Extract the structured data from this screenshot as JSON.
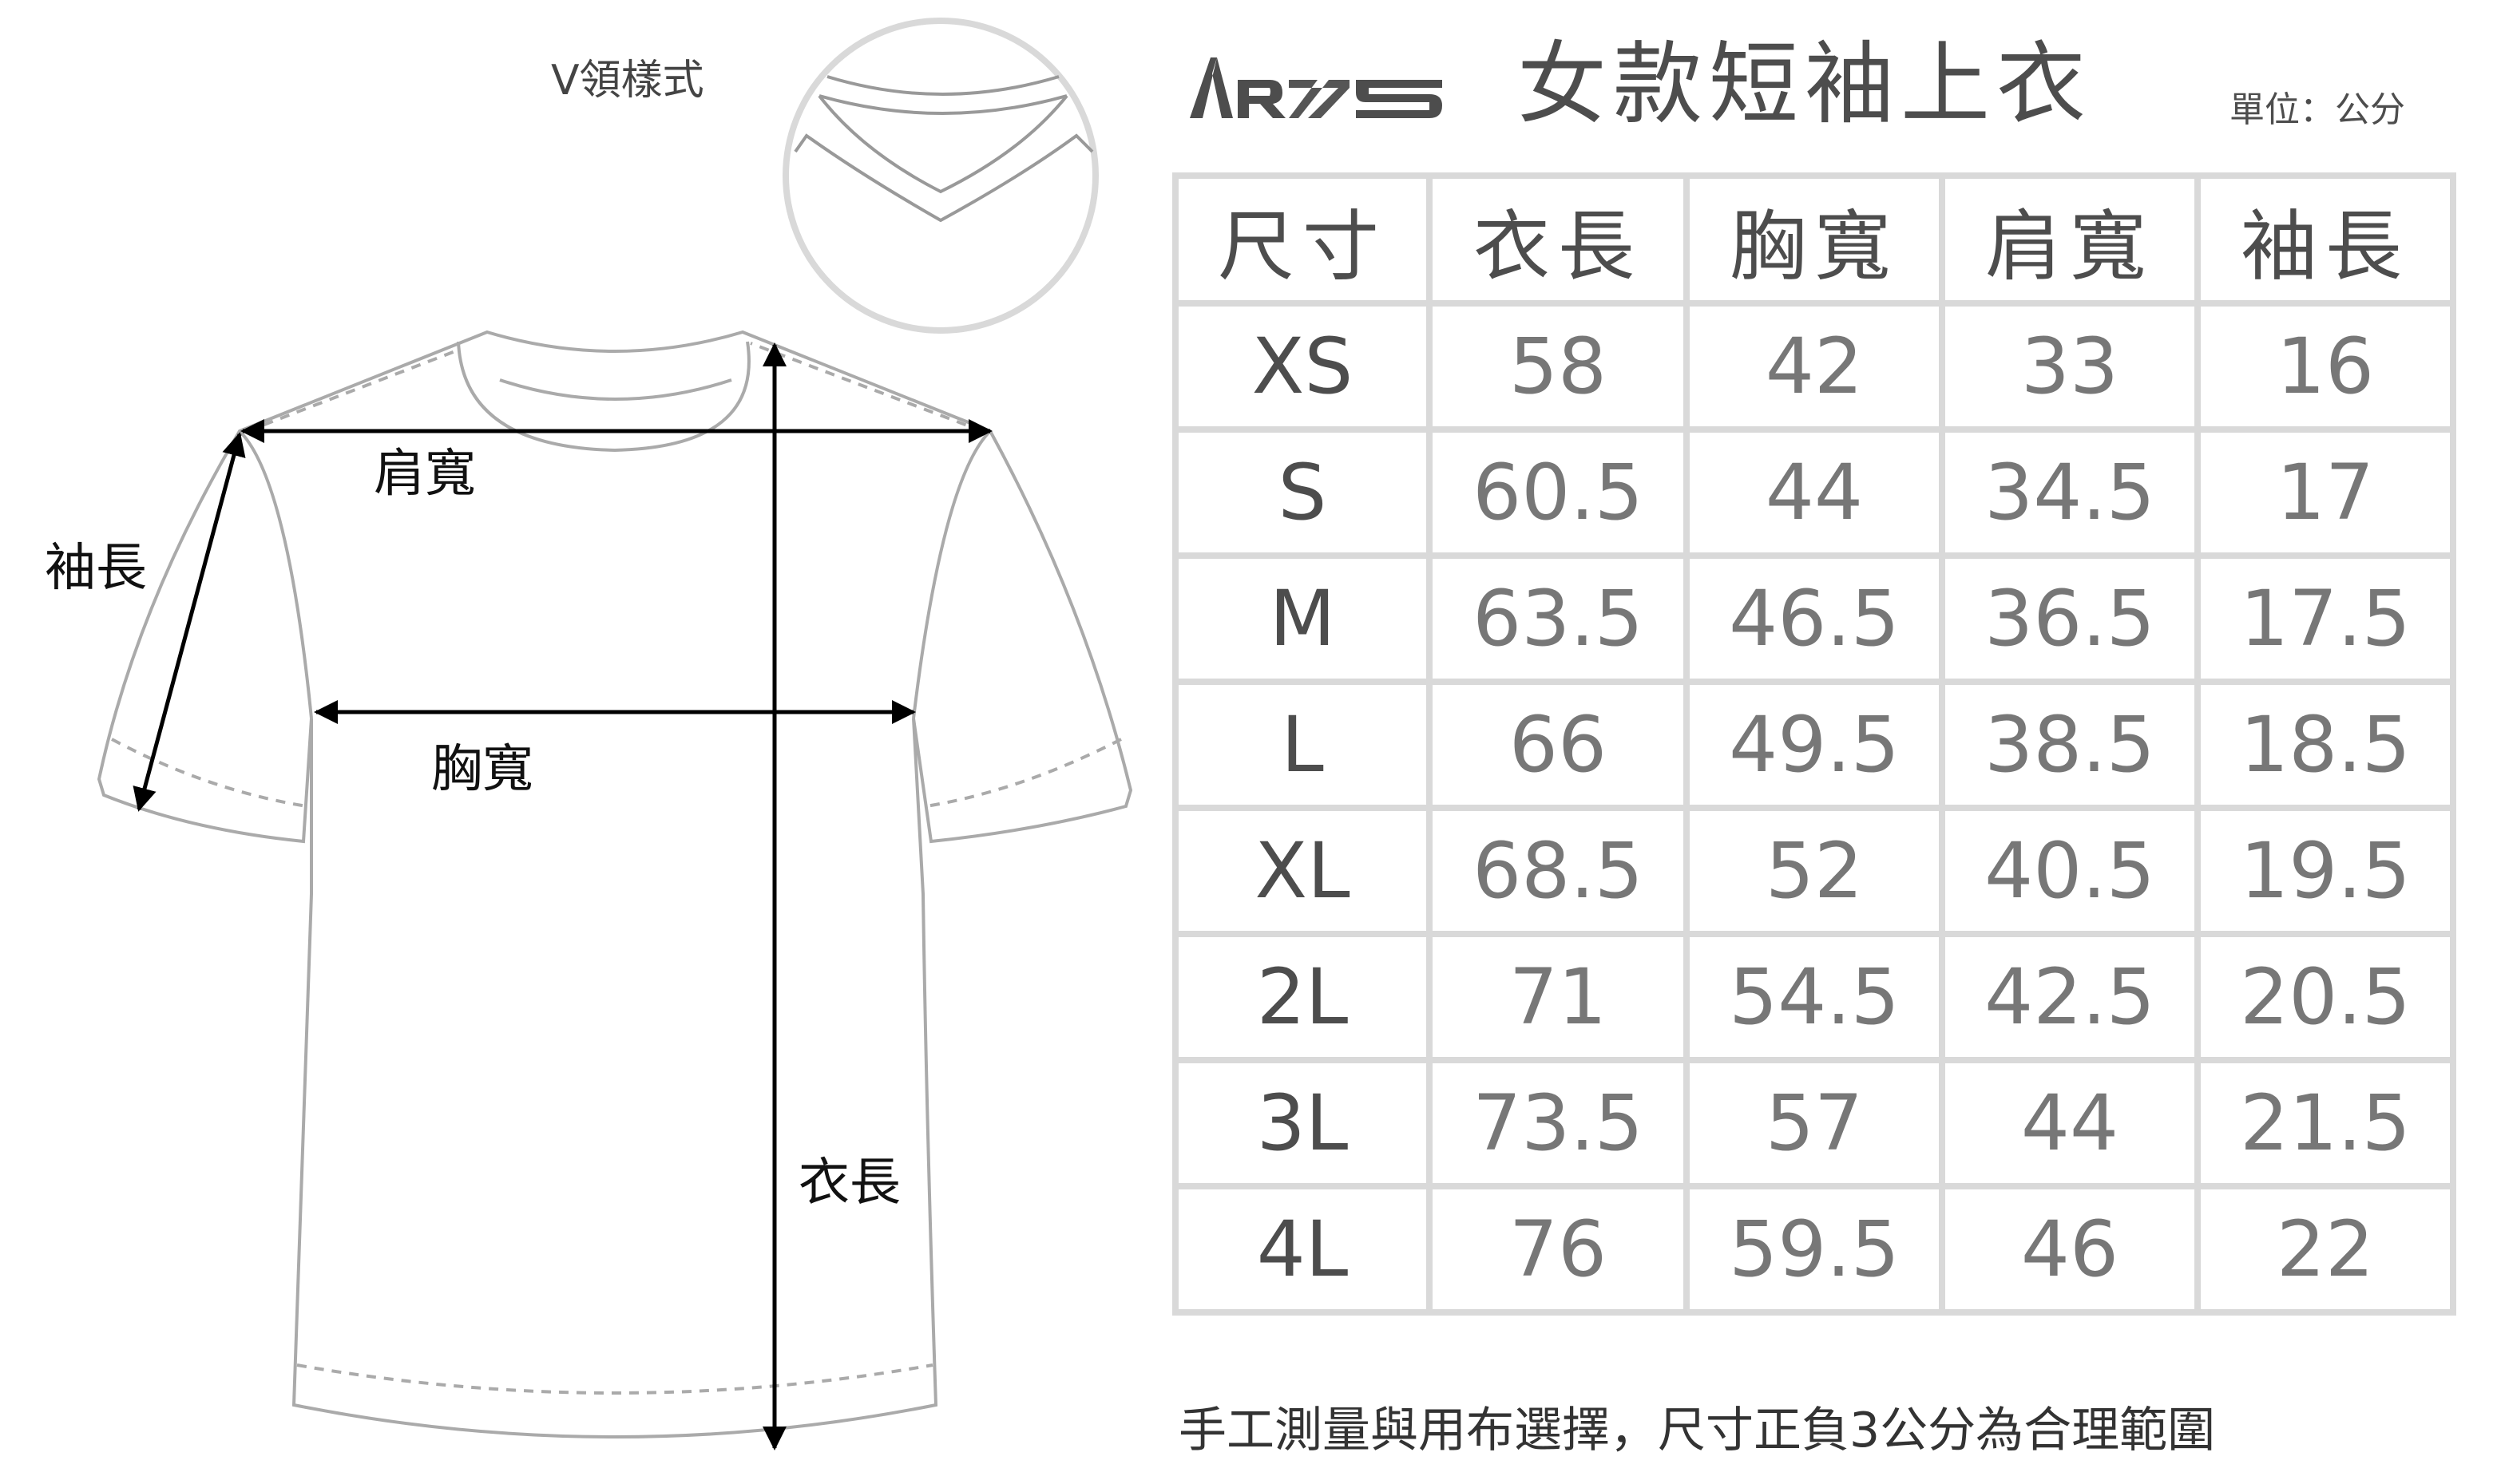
{
  "brand": {
    "logo_text": "ARZS"
  },
  "title": "女款短袖上衣",
  "unit": "單位：公分",
  "diagram": {
    "vneck_label": "V領樣式",
    "shoulder_label": "肩寬",
    "sleeve_label": "袖長",
    "chest_label": "胸寬",
    "length_label": "衣長"
  },
  "table": {
    "headers": [
      "尺寸",
      "衣長",
      "胸寬",
      "肩寬",
      "袖長"
    ],
    "rows": [
      [
        "XS",
        "58",
        "42",
        "33",
        "16"
      ],
      [
        "S",
        "60.5",
        "44",
        "34.5",
        "17"
      ],
      [
        "M",
        "63.5",
        "46.5",
        "36.5",
        "17.5"
      ],
      [
        "L",
        "66",
        "49.5",
        "38.5",
        "18.5"
      ],
      [
        "XL",
        "68.5",
        "52",
        "40.5",
        "19.5"
      ],
      [
        "2L",
        "71",
        "54.5",
        "42.5",
        "20.5"
      ],
      [
        "3L",
        "73.5",
        "57",
        "44",
        "21.5"
      ],
      [
        "4L",
        "76",
        "59.5",
        "46",
        "22"
      ]
    ]
  },
  "footnote": "手工測量與用布選擇，尺寸正負3公分為合理範圍",
  "colors": {
    "grid": "#d9d9d9",
    "text": "#4d4d4d",
    "value": "#777777",
    "outline": "#aaaaaa"
  }
}
